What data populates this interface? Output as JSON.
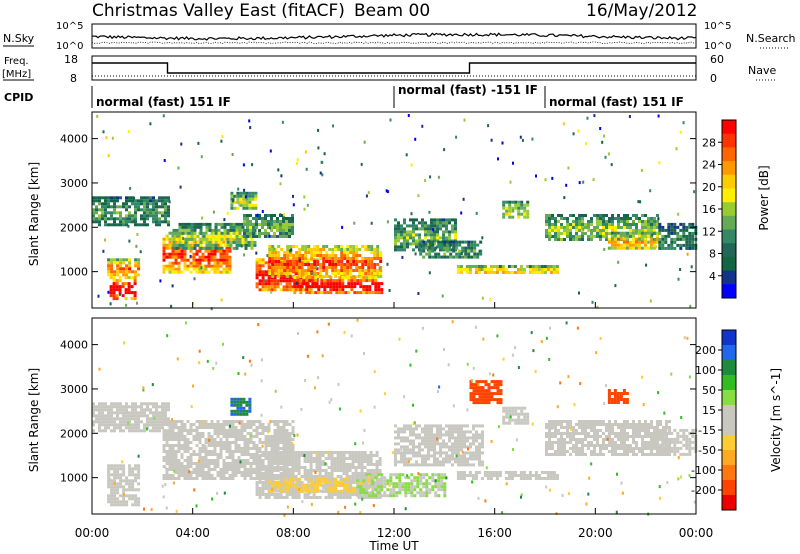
{
  "header": {
    "title": "Christmas Valley East (fitACF)",
    "beam": "Beam 00",
    "date": "16/May/2012"
  },
  "nsky_panel": {
    "left_label": "N.Sky",
    "right_label": "N.Search",
    "left_ticks": [
      "10^5",
      "10^0"
    ],
    "right_ticks": [
      "10^5",
      "10^0"
    ]
  },
  "freq_panel": {
    "left_label_1": "Freq.",
    "left_label_2": "[MHz]",
    "right_label": "Nave",
    "left_ticks": [
      "18",
      "8"
    ],
    "right_ticks": [
      "60",
      "0"
    ]
  },
  "cpid": {
    "label": "CPID",
    "segments": [
      {
        "text": "normal (fast) 151 IF",
        "start_h": 0,
        "end_h": 12
      },
      {
        "text": "normal (fast) -151 IF",
        "start_h": 12,
        "end_h": 18
      },
      {
        "text": "normal (fast) 151 IF",
        "start_h": 18,
        "end_h": 24
      }
    ]
  },
  "chart_data": [
    {
      "type": "heatmap",
      "name": "power",
      "ylabel": "Slant Range [km]",
      "yticks": [
        "4000",
        "3000",
        "2000",
        "1000"
      ],
      "ylim": [
        180,
        4600
      ],
      "xlim": [
        0,
        24
      ],
      "colorbar": {
        "label": "Power [dB]",
        "ticks": [
          "28",
          "24",
          "20",
          "16",
          "12",
          "8",
          "4"
        ],
        "colors": [
          "#ff0000",
          "#ff3300",
          "#ff6600",
          "#ff9900",
          "#ffcc00",
          "#ffee00",
          "#99cc33",
          "#66aa55",
          "#338866",
          "#226655",
          "#116644",
          "#113388",
          "#0000ff"
        ]
      },
      "regions": [
        {
          "x0": 0.0,
          "x1": 3.0,
          "r0": 2050,
          "r1": 2700,
          "level": 0.3
        },
        {
          "x0": 0.6,
          "x1": 1.8,
          "r0": 900,
          "r1": 1300,
          "level": 0.65
        },
        {
          "x0": 0.7,
          "x1": 1.7,
          "r0": 400,
          "r1": 900,
          "level": 0.85
        },
        {
          "x0": 2.8,
          "x1": 5.5,
          "r0": 1000,
          "r1": 1900,
          "level": 0.7
        },
        {
          "x0": 3.2,
          "x1": 6.5,
          "r0": 1500,
          "r1": 2100,
          "level": 0.4
        },
        {
          "x0": 5.5,
          "x1": 6.5,
          "r0": 2400,
          "r1": 2800,
          "level": 0.45
        },
        {
          "x0": 6.0,
          "x1": 8.0,
          "r0": 1800,
          "r1": 2300,
          "level": 0.35
        },
        {
          "x0": 6.5,
          "x1": 9.0,
          "r0": 600,
          "r1": 1300,
          "level": 0.85
        },
        {
          "x0": 7.0,
          "x1": 11.5,
          "r0": 900,
          "r1": 1600,
          "level": 0.7
        },
        {
          "x0": 8.0,
          "x1": 11.5,
          "r0": 550,
          "r1": 900,
          "level": 0.9
        },
        {
          "x0": 12.0,
          "x1": 14.5,
          "r0": 1500,
          "r1": 2200,
          "level": 0.35
        },
        {
          "x0": 13.0,
          "x1": 15.5,
          "r0": 1300,
          "r1": 1700,
          "level": 0.3
        },
        {
          "x0": 14.5,
          "x1": 18.5,
          "r0": 950,
          "r1": 1150,
          "level": 0.55
        },
        {
          "x0": 16.3,
          "x1": 17.3,
          "r0": 2200,
          "r1": 2600,
          "level": 0.45
        },
        {
          "x0": 18.0,
          "x1": 22.5,
          "r0": 1700,
          "r1": 2300,
          "level": 0.4
        },
        {
          "x0": 20.5,
          "x1": 22.5,
          "r0": 1500,
          "r1": 1900,
          "level": 0.55
        },
        {
          "x0": 22.5,
          "x1": 24.0,
          "r0": 1500,
          "r1": 2100,
          "level": 0.25
        }
      ]
    },
    {
      "type": "heatmap",
      "name": "velocity",
      "ylabel": "Slant Range [km]",
      "yticks": [
        "4000",
        "3000",
        "2000",
        "1000"
      ],
      "ylim": [
        180,
        4600
      ],
      "xlim": [
        0,
        24
      ],
      "colorbar": {
        "label": "Velocity [m s^-1]",
        "ticks": [
          "200",
          "100",
          "50",
          "15",
          "-15",
          "-50",
          "-100",
          "-200"
        ],
        "colors": [
          "#1133cc",
          "#2266ee",
          "#1e8a3c",
          "#33bb22",
          "#88dd44",
          "#c8c8c0",
          "#c8c8c0",
          "#ffcc33",
          "#ffaa22",
          "#ff7711",
          "#ff4400",
          "#ee0000"
        ]
      },
      "regions": [
        {
          "x0": 0.0,
          "x1": 3.0,
          "r0": 2050,
          "r1": 2700,
          "vel": 0
        },
        {
          "x0": 0.6,
          "x1": 1.8,
          "r0": 400,
          "r1": 1300,
          "vel": 0
        },
        {
          "x0": 2.8,
          "x1": 8.0,
          "r0": 1000,
          "r1": 2300,
          "vel": 0
        },
        {
          "x0": 5.5,
          "x1": 6.3,
          "r0": 2400,
          "r1": 2800,
          "vel": 150
        },
        {
          "x0": 6.5,
          "x1": 11.5,
          "r0": 550,
          "r1": 1600,
          "vel": 0
        },
        {
          "x0": 7.0,
          "x1": 11.0,
          "r0": 700,
          "r1": 1000,
          "vel": -50
        },
        {
          "x0": 10.5,
          "x1": 14.0,
          "r0": 600,
          "r1": 1100,
          "vel": 40
        },
        {
          "x0": 12.0,
          "x1": 15.5,
          "r0": 1300,
          "r1": 2200,
          "vel": 20
        },
        {
          "x0": 14.5,
          "x1": 18.5,
          "r0": 950,
          "r1": 1150,
          "vel": 0
        },
        {
          "x0": 15.0,
          "x1": 16.2,
          "r0": 2700,
          "r1": 3200,
          "vel": -180
        },
        {
          "x0": 16.3,
          "x1": 17.3,
          "r0": 2200,
          "r1": 2600,
          "vel": 0
        },
        {
          "x0": 18.0,
          "x1": 23.0,
          "r0": 1500,
          "r1": 2300,
          "vel": 0
        },
        {
          "x0": 20.5,
          "x1": 21.3,
          "r0": 2700,
          "r1": 3000,
          "vel": -180
        },
        {
          "x0": 22.5,
          "x1": 24.0,
          "r0": 1500,
          "r1": 2100,
          "vel": 0
        }
      ]
    }
  ],
  "xaxis": {
    "ticks": [
      "00:00",
      "04:00",
      "08:00",
      "12:00",
      "16:00",
      "20:00",
      "00:00"
    ],
    "label": "Time UT"
  }
}
